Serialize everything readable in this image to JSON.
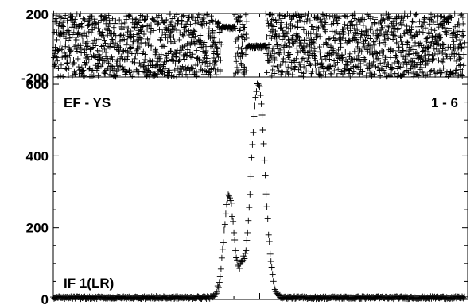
{
  "chart_data": [
    {
      "type": "scatter",
      "panel": "phase",
      "title": "",
      "xlabel": "",
      "ylabel": "",
      "xlim": [
        0,
        255
      ],
      "ylim": [
        -200,
        200
      ],
      "yticks": [
        200,
        -200
      ],
      "ytick_labels": [
        "200",
        "-200"
      ],
      "grid": false,
      "segments": [
        {
          "x_start": 0,
          "x_end": 104,
          "kind": "scatter-full-range",
          "range": [
            -200,
            200
          ]
        },
        {
          "x_start": 104,
          "x_end": 113,
          "kind": "band",
          "center": 110,
          "spread": 18
        },
        {
          "x_start": 113,
          "x_end": 120,
          "kind": "scatter-full-range",
          "range": [
            -200,
            200
          ]
        },
        {
          "x_start": 120,
          "x_end": 132,
          "kind": "band",
          "center": -10,
          "spread": 20
        },
        {
          "x_start": 132,
          "x_end": 255,
          "kind": "scatter-full-range",
          "range": [
            -200,
            200
          ]
        }
      ]
    },
    {
      "type": "scatter",
      "panel": "amplitude",
      "title": "",
      "xlabel": "",
      "ylabel": "",
      "xlim": [
        0,
        255
      ],
      "ylim": [
        0,
        620
      ],
      "yticks": [
        600,
        400,
        200,
        0
      ],
      "ytick_labels": [
        "600",
        "400",
        "200",
        "0"
      ],
      "grid": false,
      "baseline_level": 5,
      "peaks": [
        {
          "center": 109,
          "height": 285,
          "width": 3.2
        },
        {
          "center": 117,
          "height": 55,
          "width": 1.6
        },
        {
          "center": 127,
          "height": 600,
          "width": 4.2
        }
      ],
      "annotations": {
        "top_left": "EF - YS",
        "top_right": "1 - 6",
        "bottom_left": "IF 1(LR)"
      }
    }
  ]
}
